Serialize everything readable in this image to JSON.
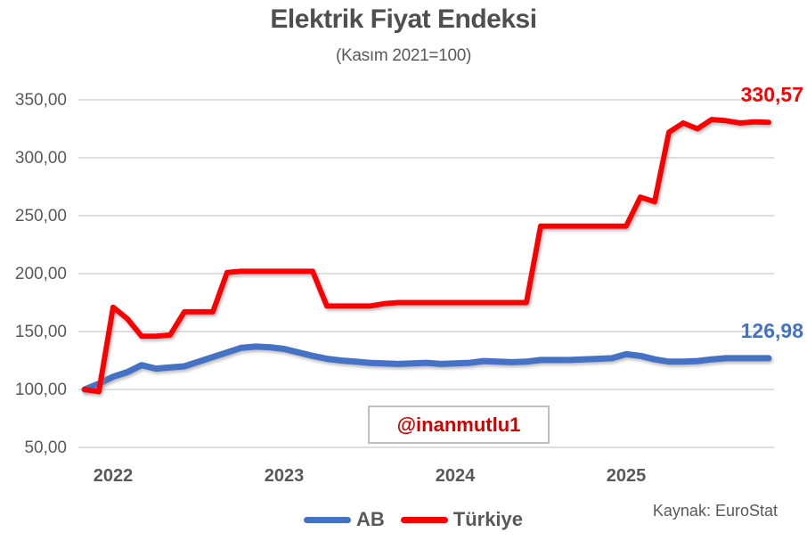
{
  "title": "Elektrik Fiyat Endeksi",
  "subtitle": "(Kasım 2021=100)",
  "watermark": "@inanmutlu1",
  "source": "Kaynak: EuroStat",
  "legend": {
    "ab_label": "AB",
    "turkiye_label": "Türkiye"
  },
  "colors": {
    "ab_blue": "#4472C4",
    "turkiye_red": "#FA0000",
    "text_gray": "#595959",
    "gridline_gray": "#D9D9D9",
    "watermark_red": "#D40000"
  },
  "chart_data": {
    "type": "line",
    "title": "Elektrik Fiyat Endeksi",
    "subtitle": "(Kasım 2021=100)",
    "x_unit": "month",
    "grid": "horizontal",
    "legend_position": "bottom",
    "ylim": [
      50,
      350
    ],
    "y_ticks": [
      {
        "label": "350,00",
        "value": 350
      },
      {
        "label": "300,00",
        "value": 300
      },
      {
        "label": "250,00",
        "value": 250
      },
      {
        "label": "200,00",
        "value": 200
      },
      {
        "label": "150,00",
        "value": 150
      },
      {
        "label": "100,00",
        "value": 100
      },
      {
        "label": "50,00",
        "value": 50
      }
    ],
    "year_ticks": [
      {
        "label": "2022",
        "month_index": 2
      },
      {
        "label": "2023",
        "month_index": 14
      },
      {
        "label": "2024",
        "month_index": 26
      },
      {
        "label": "2025",
        "month_index": 38
      }
    ],
    "months": [
      "2021-11",
      "2021-12",
      "2022-01",
      "2022-02",
      "2022-03",
      "2022-04",
      "2022-05",
      "2022-06",
      "2022-07",
      "2022-08",
      "2022-09",
      "2022-10",
      "2022-11",
      "2022-12",
      "2023-01",
      "2023-02",
      "2023-03",
      "2023-04",
      "2023-05",
      "2023-06",
      "2023-07",
      "2023-08",
      "2023-09",
      "2023-10",
      "2023-11",
      "2023-12",
      "2024-01",
      "2024-02",
      "2024-03",
      "2024-04",
      "2024-05",
      "2024-06",
      "2024-07",
      "2024-08",
      "2024-09",
      "2024-10",
      "2024-11",
      "2024-12",
      "2025-01",
      "2025-02",
      "2025-03",
      "2025-04",
      "2025-05",
      "2025-06",
      "2025-07",
      "2025-08",
      "2025-09",
      "2025-10",
      "2025-11"
    ],
    "series": [
      {
        "key": "ab",
        "name": "AB",
        "color": "#4472C4",
        "end_label": "126,98",
        "stroke_width": 7,
        "values": [
          100,
          105,
          111,
          115,
          121,
          118,
          119,
          120,
          124,
          128,
          132,
          136,
          137,
          136.5,
          135,
          132,
          129,
          126.5,
          125,
          124,
          123,
          122.5,
          122,
          122.5,
          123,
          122,
          122.5,
          123,
          124.5,
          124,
          123.5,
          124,
          125.5,
          125.5,
          125.5,
          126,
          126.5,
          127,
          130.5,
          129,
          126,
          124,
          124,
          124.5,
          126,
          127,
          127,
          127,
          126.98
        ]
      },
      {
        "key": "turkiye",
        "name": "Türkiye",
        "color": "#FA0000",
        "end_label": "330,57",
        "stroke_width": 6,
        "values": [
          100,
          98,
          171,
          161,
          146,
          146,
          147,
          167,
          167,
          167,
          201,
          202,
          202,
          202,
          202,
          202,
          202,
          172,
          172,
          172,
          172,
          174,
          175,
          175,
          175,
          175,
          175,
          175,
          175,
          175,
          175,
          175,
          241,
          241,
          241,
          241,
          241,
          241,
          241,
          266,
          262,
          322,
          330,
          325,
          333,
          332,
          330,
          331,
          330.57
        ]
      }
    ]
  }
}
